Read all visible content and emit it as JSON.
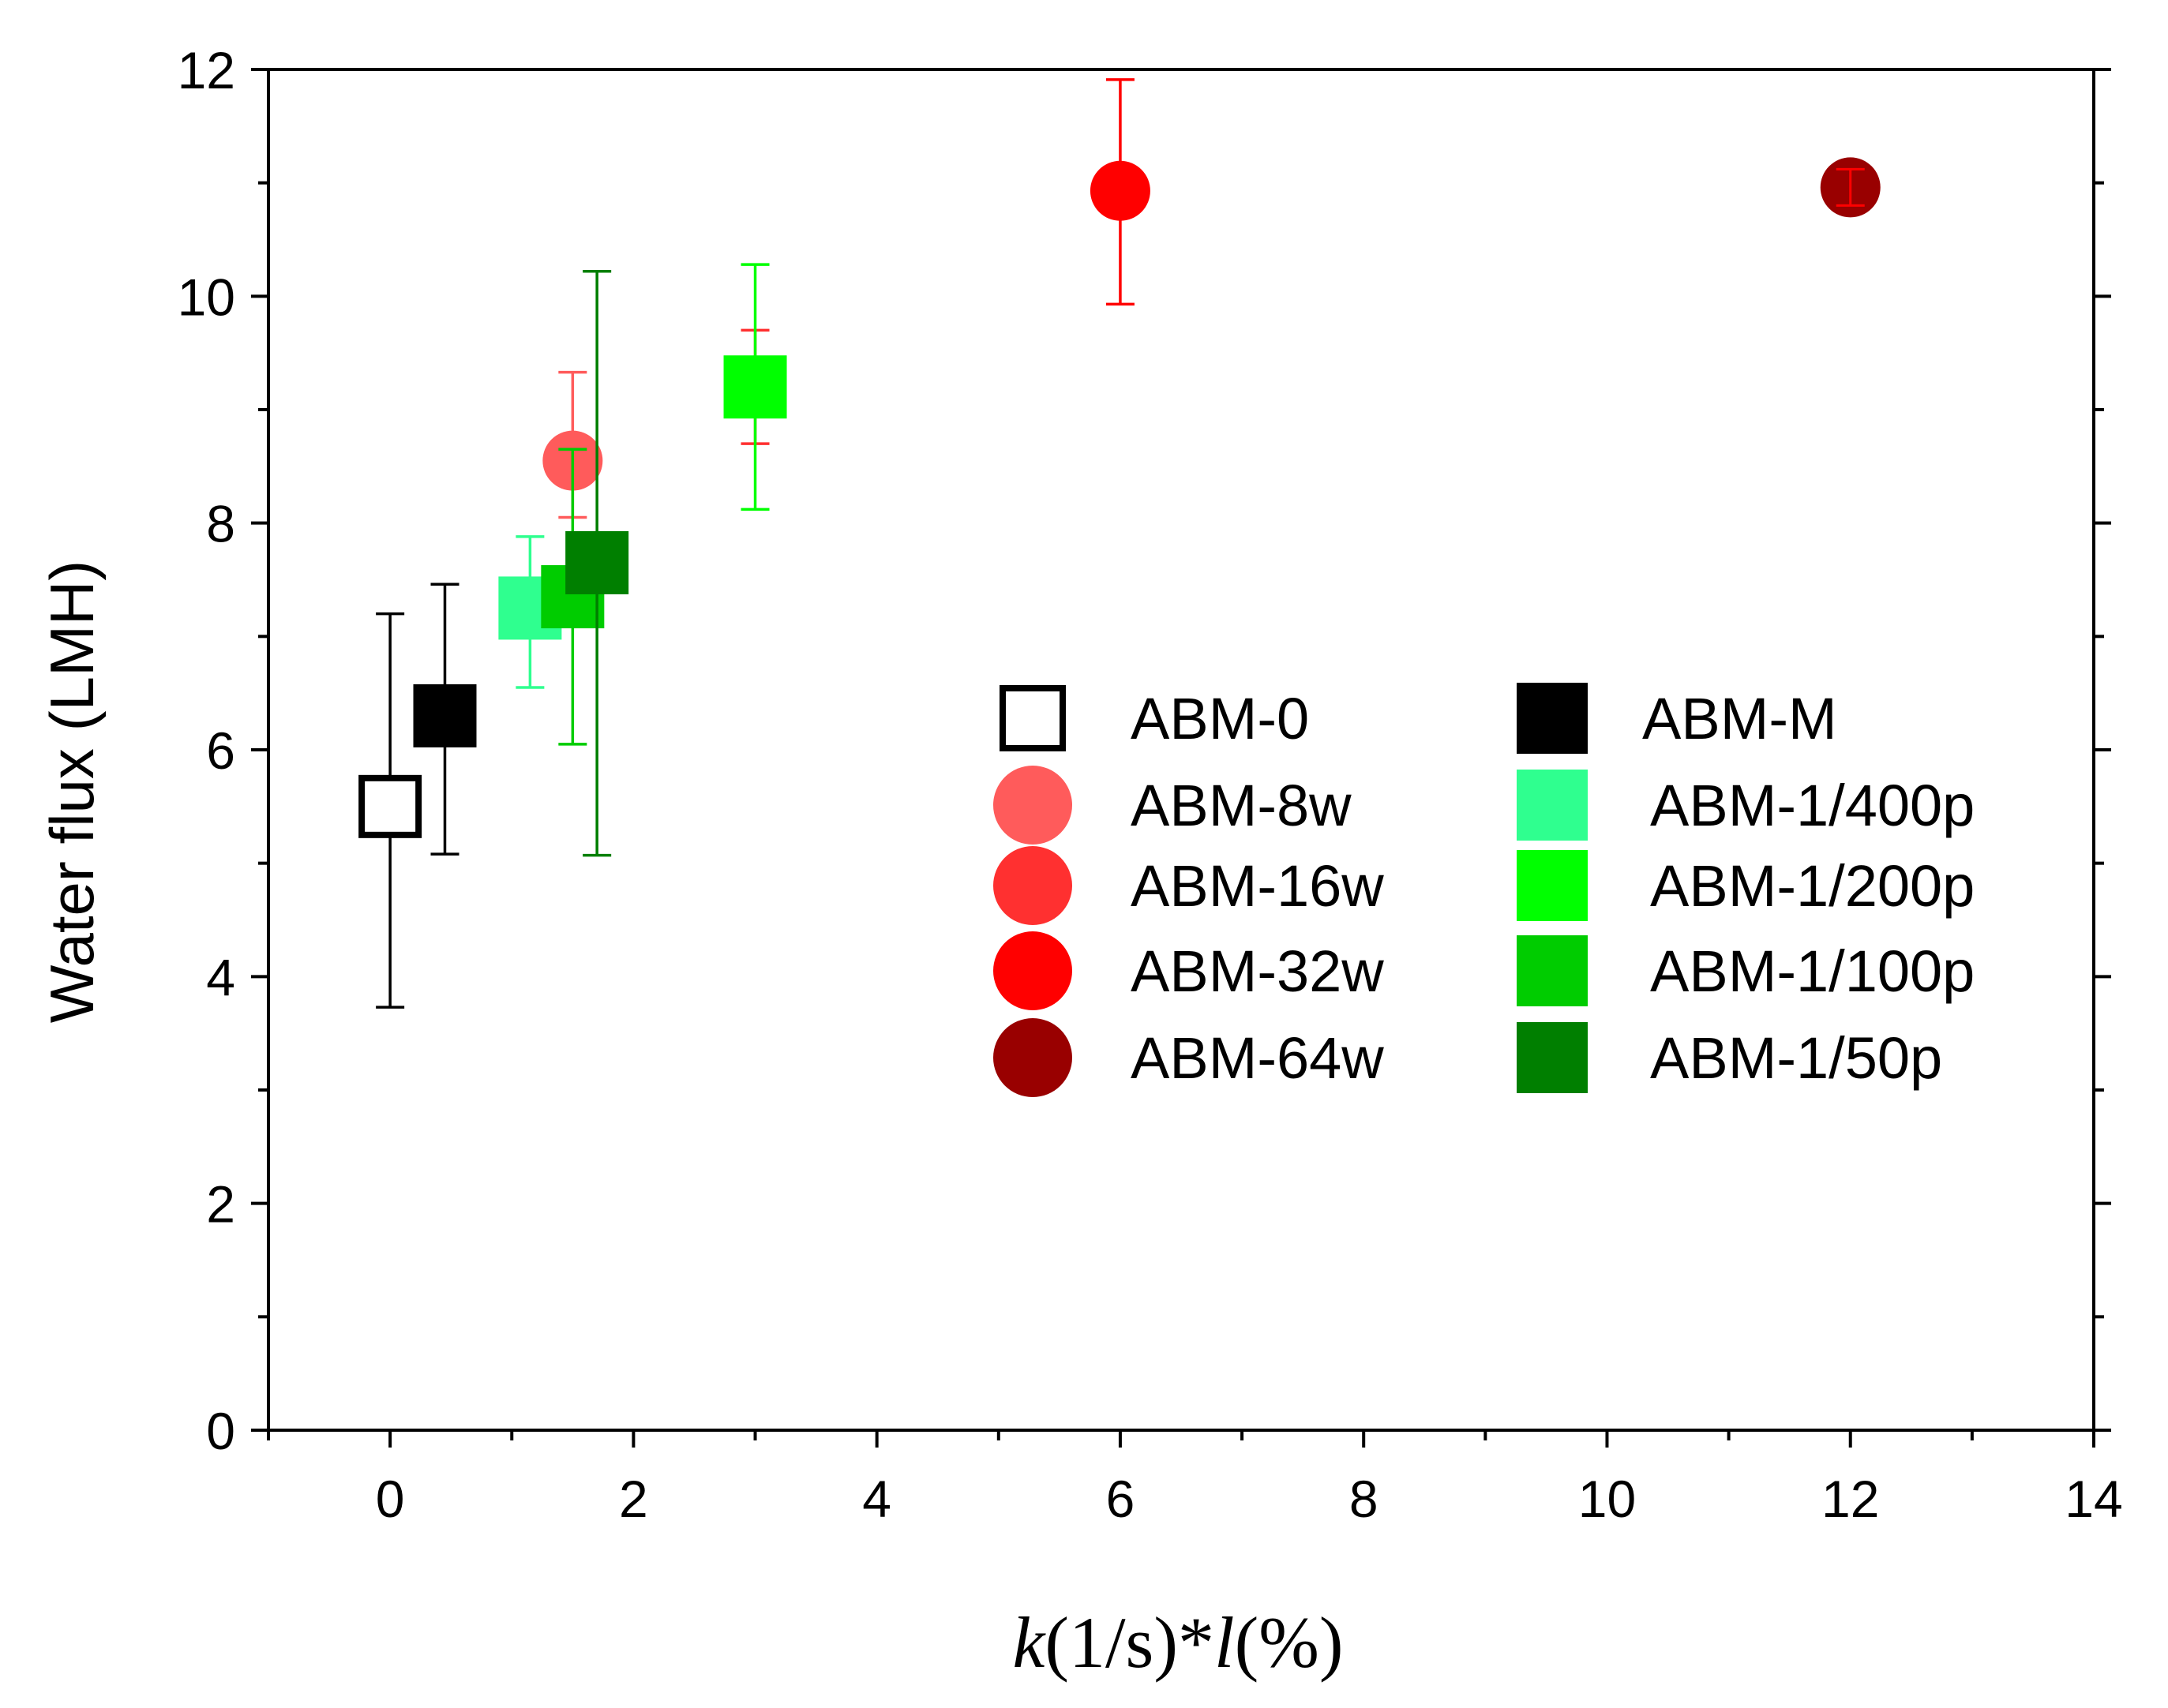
{
  "chart_data": {
    "type": "scatter",
    "title": "",
    "xlabel": {
      "k": "k",
      "mid": "(1/s)*",
      "l": "l",
      "end": "(%)"
    },
    "ylabel": "Water flux (LMH)",
    "xlim": [
      -1,
      14
    ],
    "ylim": [
      0,
      12
    ],
    "xticks": [
      0,
      2,
      4,
      6,
      8,
      10,
      12,
      14
    ],
    "yticks": [
      0,
      2,
      4,
      6,
      8,
      10,
      12
    ],
    "grid": false,
    "legend_position": "center-right",
    "series": [
      {
        "name": "ABM-0",
        "marker": "square-open",
        "color": "#000000",
        "x": 0,
        "y": 5.5,
        "err_low": 1.77,
        "err_high": 1.7
      },
      {
        "name": "ABM-M",
        "marker": "square",
        "color": "#000000",
        "x": 0.45,
        "y": 6.3,
        "err_low": 1.22,
        "err_high": 1.16
      },
      {
        "name": "ABM-8w",
        "marker": "circle",
        "color": "#ff5b5b",
        "x": 1.5,
        "y": 8.55,
        "err_low": 0.5,
        "err_high": 0.78
      },
      {
        "name": "ABM-1/400p",
        "marker": "square",
        "color": "#2fff8f",
        "x": 1.15,
        "y": 7.25,
        "err_low": 0.7,
        "err_high": 0.63
      },
      {
        "name": "ABM-16w",
        "marker": "circle",
        "color": "#ff3030",
        "x": 3.0,
        "y": 9.2,
        "err_low": 0.5,
        "err_high": 0.5
      },
      {
        "name": "ABM-1/200p",
        "marker": "square",
        "color": "#00ff00",
        "x": 3.0,
        "y": 9.2,
        "err_low": 1.08,
        "err_high": 1.08
      },
      {
        "name": "ABM-32w",
        "marker": "circle",
        "color": "#ff0000",
        "x": 6.0,
        "y": 10.93,
        "err_low": 1.0,
        "err_high": 0.98
      },
      {
        "name": "ABM-1/100p",
        "marker": "square",
        "color": "#00cc00",
        "x": 1.5,
        "y": 7.35,
        "err_low": 1.3,
        "err_high": 1.3
      },
      {
        "name": "ABM-64w",
        "marker": "circle",
        "color": "#990000",
        "x": 12.0,
        "y": 10.96,
        "err_low": 0.16,
        "err_high": 0.16,
        "err_color": "#ff0000"
      },
      {
        "name": "ABM-1/50p",
        "marker": "square",
        "color": "#007f00",
        "x": 1.7,
        "y": 7.65,
        "err_low": 2.58,
        "err_high": 2.57
      }
    ],
    "legend_order_left": [
      "ABM-0",
      "ABM-8w",
      "ABM-16w",
      "ABM-32w",
      "ABM-64w"
    ],
    "legend_order_right": [
      "ABM-M",
      "ABM-1/400p",
      "ABM-1/200p",
      "ABM-1/100p",
      "ABM-1/50p"
    ]
  }
}
